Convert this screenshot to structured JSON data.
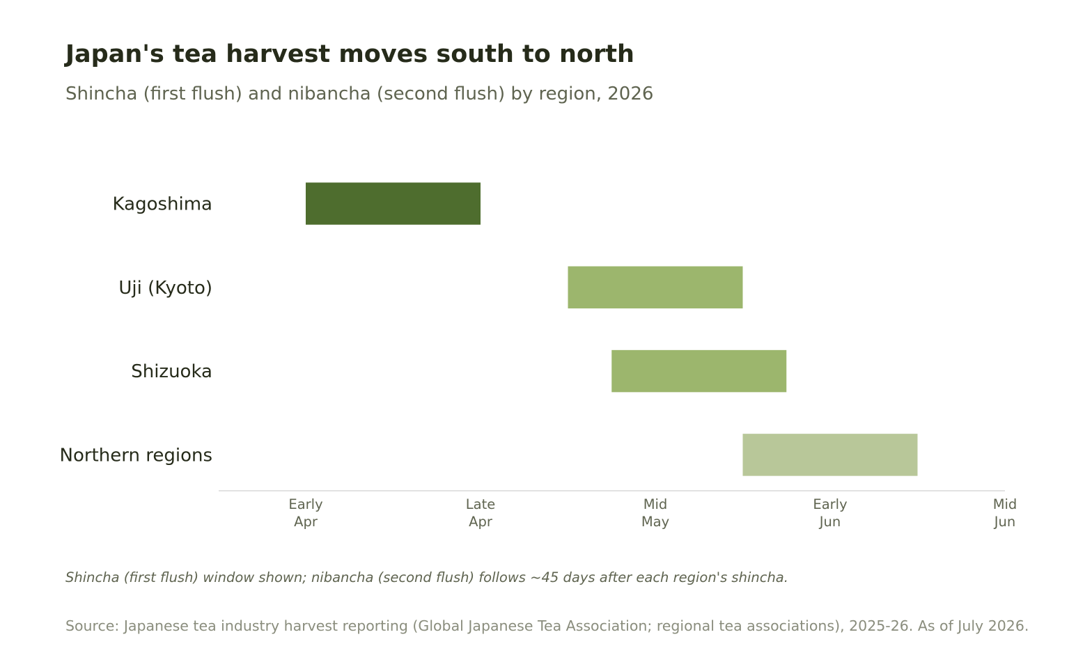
{
  "title": "Japan's tea harvest moves south to north",
  "subtitle": "Shincha (first flush) and nibancha (second flush) by region, 2026",
  "note": "Shincha (first flush) window shown; nibancha (second flush) follows ~45 days after each region's shincha.",
  "source": "Source: Japanese tea industry harvest reporting (Global Japanese Tea Association; regional tea associations), 2025-26. As of July 2026.",
  "chart_data": {
    "type": "bar",
    "orientation": "horizontal-range",
    "categories": [
      "Kagoshima",
      "Uji (Kyoto)",
      "Shizuoka",
      "Northern regions"
    ],
    "ranges": [
      {
        "category": "Kagoshima",
        "start": 0,
        "end": 1,
        "color": "#4e6d2e"
      },
      {
        "category": "Uji (Kyoto)",
        "start": 1.5,
        "end": 2.5,
        "color": "#9cb66d"
      },
      {
        "category": "Shizuoka",
        "start": 1.75,
        "end": 2.75,
        "color": "#9cb66d"
      },
      {
        "category": "Northern regions",
        "start": 2.5,
        "end": 3.5,
        "color": "#b8c799"
      }
    ],
    "x_ticks": [
      {
        "value": 0,
        "lines": [
          "Early",
          "Apr"
        ]
      },
      {
        "value": 1,
        "lines": [
          "Late",
          "Apr"
        ]
      },
      {
        "value": 2,
        "lines": [
          "Mid",
          "May"
        ]
      },
      {
        "value": 3,
        "lines": [
          "Early",
          "Jun"
        ]
      },
      {
        "value": 4,
        "lines": [
          "Mid",
          "Jun"
        ]
      }
    ],
    "xlim": [
      -0.5,
      4
    ],
    "grid": false,
    "legend": "none"
  }
}
